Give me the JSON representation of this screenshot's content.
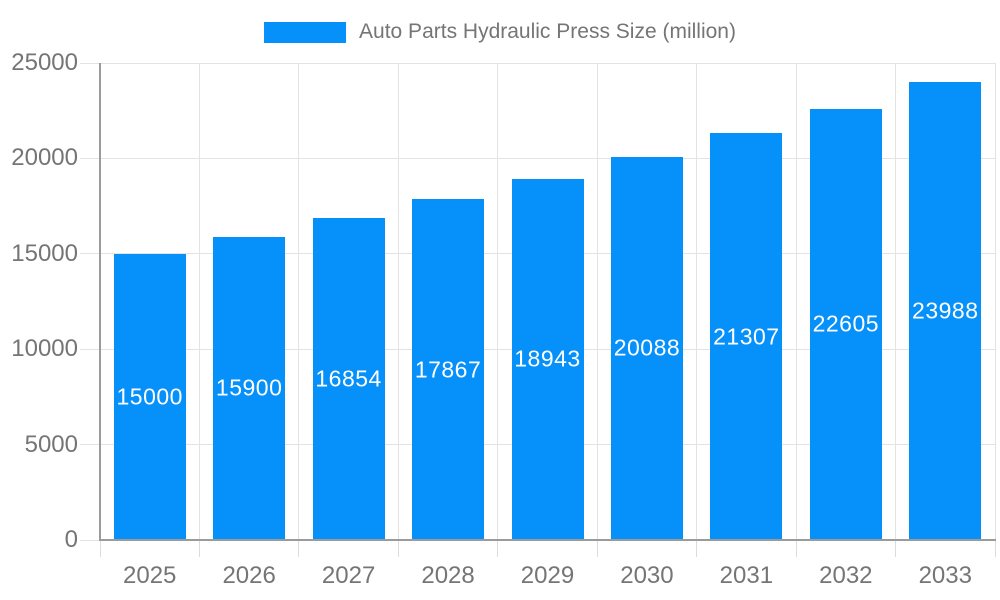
{
  "chart_data": {
    "type": "bar",
    "title": "Auto Parts Hydraulic Press Size (million)",
    "categories": [
      "2025",
      "2026",
      "2027",
      "2028",
      "2029",
      "2030",
      "2031",
      "2032",
      "2033"
    ],
    "values": [
      15000,
      15900,
      16854,
      17867,
      18943,
      20088,
      21307,
      22605,
      23988
    ],
    "xlabel": "",
    "ylabel": "",
    "ylim": [
      0,
      25000
    ],
    "yticks": [
      0,
      5000,
      10000,
      15000,
      20000,
      25000
    ],
    "grid": true,
    "legend_position": "top",
    "colors": {
      "bar": "#0590fa",
      "bar_label": "#ffffff",
      "axis_text": "#757575",
      "legend_text": "#757575",
      "gridline": "#e3e3e3",
      "tick": "#dcdcdc",
      "axis_line": "#9b9b9b",
      "background": "#ffffff"
    }
  }
}
